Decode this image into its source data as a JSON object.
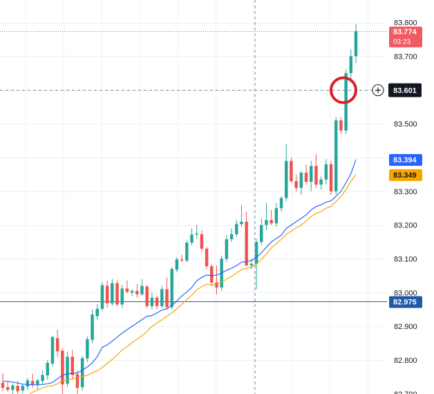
{
  "chart_data": {
    "type": "candlestick",
    "ylim": [
      82.7,
      83.82
    ],
    "grid": true,
    "y_ticks": [
      "83.800",
      "83.700",
      "83.500",
      "83.300",
      "83.200",
      "83.100",
      "83.000",
      "82.900",
      "82.800",
      "82.700"
    ],
    "candles": [
      [
        82.733,
        82.762,
        82.708,
        82.718
      ],
      [
        82.72,
        82.735,
        82.705,
        82.712
      ],
      [
        82.712,
        82.73,
        82.7,
        82.725
      ],
      [
        82.724,
        82.738,
        82.7,
        82.708
      ],
      [
        82.71,
        82.73,
        82.702,
        82.724
      ],
      [
        82.722,
        82.747,
        82.712,
        82.74
      ],
      [
        82.738,
        82.76,
        82.718,
        82.726
      ],
      [
        82.728,
        82.744,
        82.712,
        82.74
      ],
      [
        82.738,
        82.77,
        82.728,
        82.756
      ],
      [
        82.755,
        82.8,
        82.742,
        82.792
      ],
      [
        82.79,
        82.872,
        82.782,
        82.868
      ],
      [
        82.865,
        82.89,
        82.81,
        82.826
      ],
      [
        82.828,
        82.835,
        82.7,
        82.728
      ],
      [
        82.73,
        82.826,
        82.72,
        82.81
      ],
      [
        82.81,
        82.83,
        82.742,
        82.756
      ],
      [
        82.758,
        82.77,
        82.69,
        82.718
      ],
      [
        82.72,
        82.812,
        82.71,
        82.806
      ],
      [
        82.805,
        82.87,
        82.795,
        82.862
      ],
      [
        82.86,
        82.95,
        82.85,
        82.935
      ],
      [
        82.93,
        82.966,
        82.92,
        82.952
      ],
      [
        82.952,
        83.03,
        82.945,
        83.022
      ],
      [
        83.02,
        83.035,
        82.955,
        82.968
      ],
      [
        82.968,
        83.04,
        82.96,
        83.028
      ],
      [
        83.028,
        83.036,
        82.96,
        82.965
      ],
      [
        82.965,
        83.022,
        82.955,
        83.012
      ],
      [
        83.012,
        83.036,
        82.998,
        83.002
      ],
      [
        83.0,
        83.01,
        82.99,
        83.005
      ],
      [
        83.005,
        83.025,
        82.985,
        82.995
      ],
      [
        82.995,
        83.04,
        82.99,
        83.02
      ],
      [
        83.018,
        83.022,
        82.955,
        82.96
      ],
      [
        82.96,
        83.0,
        82.95,
        82.985
      ],
      [
        82.985,
        82.99,
        82.95,
        82.96
      ],
      [
        82.96,
        83.02,
        82.955,
        83.01
      ],
      [
        83.01,
        83.045,
        82.95,
        82.957
      ],
      [
        82.957,
        83.075,
        82.95,
        83.07
      ],
      [
        83.068,
        83.105,
        83.06,
        83.098
      ],
      [
        83.098,
        83.112,
        83.09,
        83.095
      ],
      [
        83.095,
        83.155,
        83.09,
        83.148
      ],
      [
        83.148,
        83.19,
        83.14,
        83.172
      ],
      [
        83.172,
        83.2,
        83.16,
        83.175
      ],
      [
        83.173,
        83.185,
        83.12,
        83.13
      ],
      [
        83.13,
        83.135,
        83.07,
        83.078
      ],
      [
        83.078,
        83.085,
        83.02,
        83.03
      ],
      [
        83.03,
        83.08,
        82.995,
        83.015
      ],
      [
        83.015,
        83.11,
        83.005,
        83.1
      ],
      [
        83.1,
        83.17,
        83.09,
        83.158
      ],
      [
        83.158,
        83.19,
        83.15,
        83.173
      ],
      [
        83.173,
        83.215,
        83.165,
        83.203
      ],
      [
        83.203,
        83.26,
        83.195,
        83.21
      ],
      [
        83.21,
        83.24,
        83.08,
        83.08
      ],
      [
        83.08,
        83.1,
        83.07,
        83.085
      ],
      [
        83.085,
        83.16,
        83.01,
        83.15
      ],
      [
        83.15,
        83.22,
        83.14,
        83.2
      ],
      [
        83.2,
        83.265,
        83.185,
        83.215
      ],
      [
        83.215,
        83.245,
        83.2,
        83.205
      ],
      [
        83.205,
        83.265,
        83.195,
        83.25
      ],
      [
        83.25,
        83.285,
        83.24,
        83.28
      ],
      [
        83.28,
        83.44,
        83.27,
        83.39
      ],
      [
        83.39,
        83.4,
        83.325,
        83.33
      ],
      [
        83.33,
        83.35,
        83.3,
        83.31
      ],
      [
        83.31,
        83.36,
        83.29,
        83.355
      ],
      [
        83.355,
        83.38,
        83.32,
        83.328
      ],
      [
        83.328,
        83.39,
        83.3,
        83.375
      ],
      [
        83.375,
        83.41,
        83.31,
        83.32
      ],
      [
        83.32,
        83.345,
        83.305,
        83.335
      ],
      [
        83.335,
        83.395,
        83.32,
        83.38
      ],
      [
        83.38,
        83.39,
        83.29,
        83.3
      ],
      [
        83.3,
        83.52,
        83.29,
        83.51
      ],
      [
        83.51,
        83.52,
        83.47,
        83.48
      ],
      [
        83.48,
        83.66,
        83.47,
        83.65
      ],
      [
        83.65,
        83.72,
        83.63,
        83.7
      ],
      [
        83.7,
        83.795,
        83.68,
        83.774
      ]
    ],
    "ma_blue": [
      82.738,
      82.737,
      82.735,
      82.732,
      82.729,
      82.728,
      82.727,
      82.727,
      82.728,
      82.73,
      82.734,
      82.745,
      82.755,
      82.76,
      82.76,
      82.762,
      82.77,
      82.78,
      82.792,
      82.81,
      82.838,
      82.845,
      82.856,
      82.868,
      82.88,
      82.89,
      82.9,
      82.91,
      82.92,
      82.93,
      82.932,
      82.94,
      82.948,
      82.952,
      82.962,
      82.975,
      82.99,
      83.002,
      83.015,
      83.035,
      83.045,
      83.052,
      83.05,
      83.052,
      83.058,
      83.066,
      83.072,
      83.08,
      83.09,
      83.092,
      83.095,
      83.105,
      83.118,
      83.135,
      83.15,
      83.16,
      83.17,
      83.19,
      83.2,
      83.21,
      83.22,
      83.23,
      83.245,
      83.255,
      83.26,
      83.268,
      83.272,
      83.285,
      83.3,
      83.325,
      83.352,
      83.394
    ],
    "ma_orange": [
      82.69,
      82.69,
      82.69,
      82.69,
      82.69,
      82.695,
      82.705,
      82.712,
      82.718,
      82.722,
      82.724,
      82.73,
      82.74,
      82.742,
      82.745,
      82.748,
      82.752,
      82.755,
      82.762,
      82.768,
      82.778,
      82.79,
      82.802,
      82.815,
      82.83,
      82.84,
      82.852,
      82.862,
      82.872,
      82.885,
      82.9,
      82.91,
      82.92,
      82.93,
      82.94,
      82.952,
      82.965,
      82.98,
      82.992,
      83.008,
      83.018,
      83.025,
      83.022,
      83.025,
      83.03,
      83.04,
      83.048,
      83.058,
      83.068,
      83.072,
      83.075,
      83.085,
      83.098,
      83.115,
      83.132,
      83.145,
      83.158,
      83.172,
      83.182,
      83.192,
      83.2,
      83.212,
      83.225,
      83.235,
      83.24,
      83.25,
      83.255,
      83.27,
      83.285,
      83.305,
      83.33,
      83.349
    ],
    "hline_value": 82.975,
    "crosshair_value": 83.601
  },
  "price_scale": {
    "last_price": "83.774",
    "countdown": "03:23",
    "crosshair_price": "83.601",
    "ma_blue_value": "83.394",
    "ma_orange_value": "83.349",
    "hline_price": "82.975"
  },
  "colors": {
    "up": "#26a69a",
    "down": "#ef5350",
    "ma_blue": "#2962ff",
    "ma_orange": "#f7a600",
    "hline": "#1e5aa8",
    "grid": "#eef0f3",
    "crosshair_tag_bg": "#131722",
    "circle_marker": "#d9202a"
  }
}
